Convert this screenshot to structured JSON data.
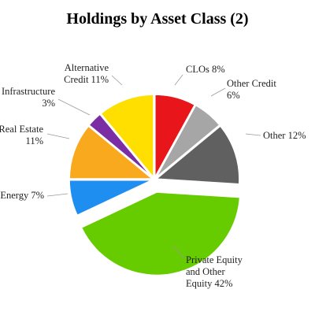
{
  "chart_data": {
    "type": "pie",
    "title": "Holdings by Asset Class (2)",
    "slices": [
      {
        "name": "CLOs",
        "value": 8,
        "color": "#e8161b",
        "label_lines": [
          "CLOs 8%"
        ]
      },
      {
        "name": "Other Credit",
        "value": 6,
        "color": "#a6a6a6",
        "label_lines": [
          "Other Credit",
          "6%"
        ]
      },
      {
        "name": "Other",
        "value": 12,
        "color": "#606060",
        "label_lines": [
          "Other 12%"
        ]
      },
      {
        "name": "Private Equity and Other Equity",
        "value": 42,
        "color": "#66cc00",
        "label_lines": [
          "Private Equity",
          "and Other",
          "Equity 42%"
        ]
      },
      {
        "name": "Energy",
        "value": 7,
        "color": "#1e8ff0",
        "label_lines": [
          "Energy 7%"
        ]
      },
      {
        "name": "Real Estate",
        "value": 11,
        "color": "#f9a91d",
        "label_lines": [
          "Real Estate",
          "11%"
        ]
      },
      {
        "name": "Infrastructure",
        "value": 3,
        "color": "#7b2ea3",
        "label_lines": [
          "Infrastructure",
          "3%"
        ]
      },
      {
        "name": "Alternative Credit",
        "value": 11,
        "color": "#ffdf00",
        "label_lines": [
          "Alternative",
          "Credit 11%"
        ]
      }
    ],
    "start_angle_deg": 90,
    "direction": "clockwise",
    "exploded_slice": "Private Equity and Other Equity",
    "legend": "none"
  }
}
